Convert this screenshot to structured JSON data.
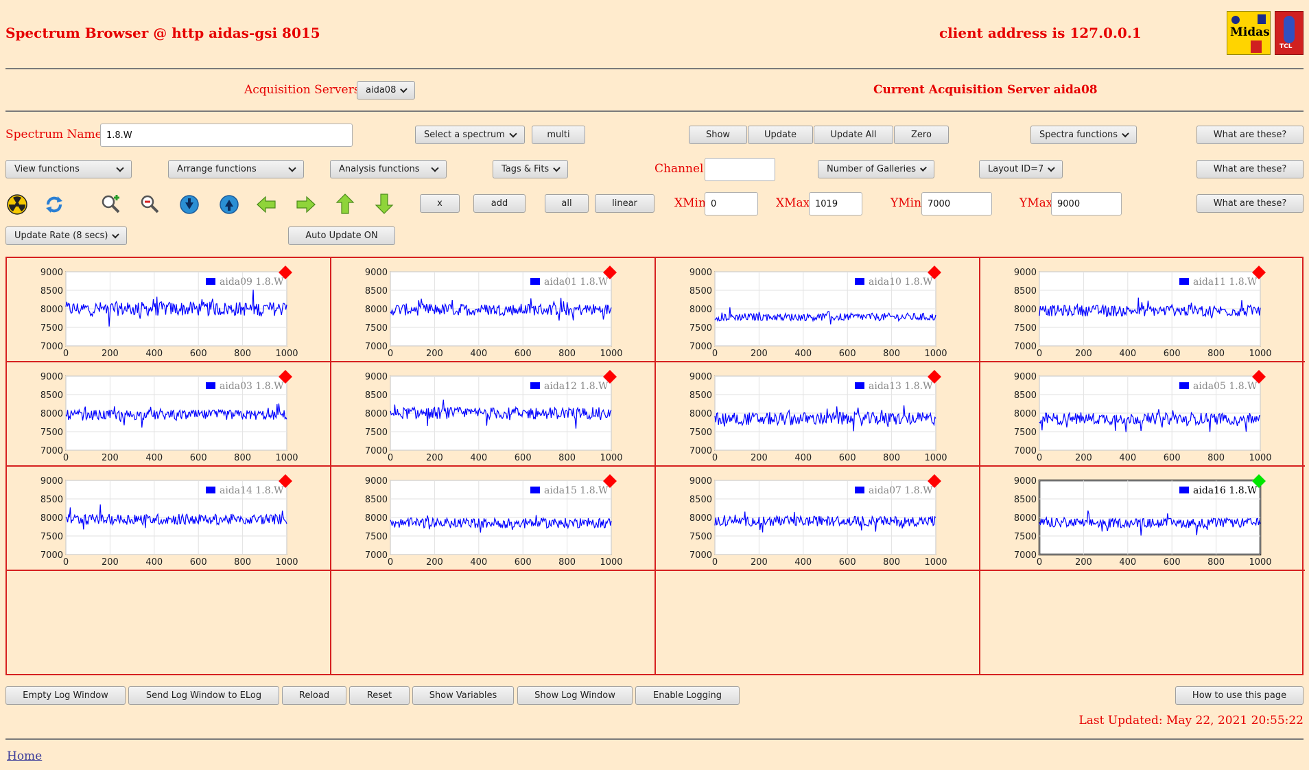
{
  "header": {
    "title": "Spectrum Browser @ http aidas-gsi 8015",
    "client": "client address is 127.0.0.1",
    "logo_midas": "Midas",
    "logo_tcl": "TCL"
  },
  "acq": {
    "label": "Acquisition Servers",
    "server_select": "aida08",
    "current": "Current Acquisition Server aida08"
  },
  "spectrum": {
    "label": "Spectrum Name:",
    "value": "1.8.W",
    "select_label": "Select a spectrum",
    "multi": "multi",
    "show": "Show",
    "update": "Update",
    "update_all": "Update All",
    "zero": "Zero",
    "spectra_functions": "Spectra functions",
    "what": "What are these?"
  },
  "row2": {
    "view": "View functions",
    "arrange": "Arrange functions",
    "analysis": "Analysis functions",
    "tags": "Tags & Fits",
    "channel_label": "Channel:",
    "channel_value": "",
    "galleries": "Number of Galleries",
    "layout": "Layout ID=7",
    "what": "What are these?"
  },
  "row3": {
    "x": "x",
    "add": "add",
    "all": "all",
    "linear": "linear",
    "xmin_label": "XMin",
    "xmin": "0",
    "xmax_label": "XMax",
    "xmax": "1019",
    "ymin_label": "YMin",
    "ymin": "7000",
    "ymax_label": "YMax",
    "ymax": "9000",
    "what": "What are these?",
    "icons": [
      "radiation-icon",
      "refresh-icon",
      "zoom-in-icon",
      "zoom-out-icon",
      "scroll-down-icon",
      "scroll-up-icon",
      "arrow-left-icon",
      "arrow-right-icon",
      "arrow-up-icon",
      "arrow-down-icon"
    ]
  },
  "row4": {
    "rate": "Update Rate (8 secs)",
    "auto": "Auto Update ON"
  },
  "footer": {
    "buttons": [
      "Empty Log Window",
      "Send Log Window to ELog",
      "Reload",
      "Reset",
      "Show Variables",
      "Show Log Window",
      "Enable Logging"
    ],
    "howto": "How to use this page",
    "updated": "Last Updated: May 22, 2021 20:55:22",
    "home": "Home"
  },
  "colors": {
    "background": "#ffebcd",
    "accent": "#e60000",
    "series": "#0000ff",
    "marker_red": "#ff0000",
    "marker_green": "#00e600"
  },
  "chart_data": [
    {
      "type": "line",
      "legend": "aida09 1.8.W",
      "ylim": [
        7000,
        9000
      ],
      "xlim": [
        0,
        1000
      ],
      "xticks": [
        0,
        200,
        400,
        600,
        800,
        1000
      ],
      "yticks": [
        9000,
        8500,
        8000,
        7500,
        7000
      ],
      "mean": 8000,
      "noise": 240,
      "status": "red"
    },
    {
      "type": "line",
      "legend": "aida01 1.8.W",
      "ylim": [
        7000,
        9000
      ],
      "xlim": [
        0,
        1000
      ],
      "xticks": [
        0,
        200,
        400,
        600,
        800,
        1000
      ],
      "yticks": [
        9000,
        8500,
        8000,
        7500,
        7000
      ],
      "mean": 7980,
      "noise": 200,
      "status": "red"
    },
    {
      "type": "line",
      "legend": "aida10 1.8.W",
      "ylim": [
        7000,
        9000
      ],
      "xlim": [
        0,
        1000
      ],
      "xticks": [
        0,
        200,
        400,
        600,
        800,
        1000
      ],
      "yticks": [
        9000,
        8500,
        8000,
        7500,
        7000
      ],
      "mean": 7780,
      "noise": 130,
      "status": "red"
    },
    {
      "type": "line",
      "legend": "aida11 1.8.W",
      "ylim": [
        7000,
        9000
      ],
      "xlim": [
        0,
        1000
      ],
      "xticks": [
        0,
        200,
        400,
        600,
        800,
        1000
      ],
      "yticks": [
        9000,
        8500,
        8000,
        7500,
        7000
      ],
      "mean": 7950,
      "noise": 190,
      "status": "red"
    },
    {
      "type": "line",
      "legend": "aida03 1.8.W",
      "ylim": [
        7000,
        9000
      ],
      "xlim": [
        0,
        1000
      ],
      "xticks": [
        0,
        200,
        400,
        600,
        800,
        1000
      ],
      "yticks": [
        9000,
        8500,
        8000,
        7500,
        7000
      ],
      "mean": 7950,
      "noise": 170,
      "status": "red"
    },
    {
      "type": "line",
      "legend": "aida12 1.8.W",
      "ylim": [
        7000,
        9000
      ],
      "xlim": [
        0,
        1000
      ],
      "xticks": [
        0,
        200,
        400,
        600,
        800,
        1000
      ],
      "yticks": [
        9000,
        8500,
        8000,
        7500,
        7000
      ],
      "mean": 8000,
      "noise": 200,
      "status": "red"
    },
    {
      "type": "line",
      "legend": "aida13 1.8.W",
      "ylim": [
        7000,
        9000
      ],
      "xlim": [
        0,
        1000
      ],
      "xticks": [
        0,
        200,
        400,
        600,
        800,
        1000
      ],
      "yticks": [
        9000,
        8500,
        8000,
        7500,
        7000
      ],
      "mean": 7850,
      "noise": 220,
      "status": "red"
    },
    {
      "type": "line",
      "legend": "aida05 1.8.W",
      "ylim": [
        7000,
        9000
      ],
      "xlim": [
        0,
        1000
      ],
      "xticks": [
        0,
        200,
        400,
        600,
        800,
        1000
      ],
      "yticks": [
        9000,
        8500,
        8000,
        7500,
        7000
      ],
      "mean": 7850,
      "noise": 200,
      "status": "red"
    },
    {
      "type": "line",
      "legend": "aida14 1.8.W",
      "ylim": [
        7000,
        9000
      ],
      "xlim": [
        0,
        1000
      ],
      "xticks": [
        0,
        200,
        400,
        600,
        800,
        1000
      ],
      "yticks": [
        9000,
        8500,
        8000,
        7500,
        7000
      ],
      "mean": 7950,
      "noise": 180,
      "status": "red"
    },
    {
      "type": "line",
      "legend": "aida15 1.8.W",
      "ylim": [
        7000,
        9000
      ],
      "xlim": [
        0,
        1000
      ],
      "xticks": [
        0,
        200,
        400,
        600,
        800,
        1000
      ],
      "yticks": [
        9000,
        8500,
        8000,
        7500,
        7000
      ],
      "mean": 7850,
      "noise": 170,
      "status": "red"
    },
    {
      "type": "line",
      "legend": "aida07 1.8.W",
      "ylim": [
        7000,
        9000
      ],
      "xlim": [
        0,
        1000
      ],
      "xticks": [
        0,
        200,
        400,
        600,
        800,
        1000
      ],
      "yticks": [
        9000,
        8500,
        8000,
        7500,
        7000
      ],
      "mean": 7900,
      "noise": 170,
      "status": "red"
    },
    {
      "type": "line",
      "legend": "aida16 1.8.W",
      "ylim": [
        7000,
        9000
      ],
      "xlim": [
        0,
        1000
      ],
      "xticks": [
        0,
        200,
        400,
        600,
        800,
        1000
      ],
      "yticks": [
        9000,
        8500,
        8000,
        7500,
        7000
      ],
      "mean": 7850,
      "noise": 160,
      "status": "green",
      "selected": true
    }
  ]
}
